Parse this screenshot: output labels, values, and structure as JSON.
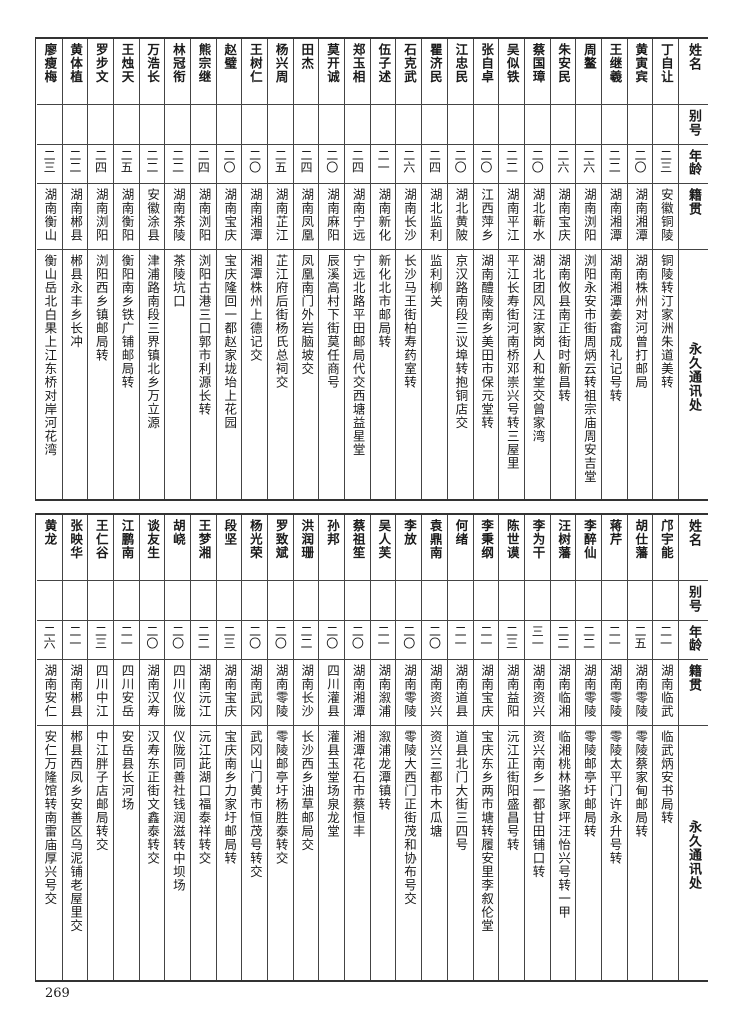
{
  "headers": {
    "name": "姓名",
    "alias": "别号",
    "age": "年龄",
    "native": "籍贯",
    "address": "永久通讯处"
  },
  "top_rows": [
    {
      "name": "丁自让",
      "alias": "",
      "age": "二三",
      "native": "安徽铜陵",
      "address": "铜陵转汀家洲朱道美转"
    },
    {
      "name": "黄寅宾",
      "alias": "",
      "age": "二〇",
      "native": "湖南湘潭",
      "address": "湖南株州对河曾打邮局"
    },
    {
      "name": "王继羲",
      "alias": "",
      "age": "二二",
      "native": "湖南湘潭",
      "address": "湖南湘潭姜畬成礼记号转"
    },
    {
      "name": "周鳌",
      "alias": "",
      "age": "二六",
      "native": "湖南浏阳",
      "address": "浏阳永安市街周炳云转祖宗庙周安吉堂"
    },
    {
      "name": "朱安民",
      "alias": "",
      "age": "二六",
      "native": "湖南宝庆",
      "address": "湖南攸县南正街时新昌转"
    },
    {
      "name": "蔡国璋",
      "alias": "",
      "age": "二〇",
      "native": "湖北蕲水",
      "address": "湖北团风汪家岗人和堂交曾家湾"
    },
    {
      "name": "吴似铁",
      "alias": "",
      "age": "二二",
      "native": "湖南平江",
      "address": "平江长寿街河南桥邓崇兴号转三屋里"
    },
    {
      "name": "张自卓",
      "alias": "",
      "age": "二〇",
      "native": "江西萍乡",
      "address": "湖南醴陵南乡美田市保元堂转"
    },
    {
      "name": "江忠民",
      "alias": "",
      "age": "二〇",
      "native": "湖北黄陂",
      "address": "京汉路南段三议埠转抱铜店交"
    },
    {
      "name": "瞿济民",
      "alias": "",
      "age": "二四",
      "native": "湖北监利",
      "address": "监利柳关"
    },
    {
      "name": "石克武",
      "alias": "",
      "age": "二六",
      "native": "湖南长沙",
      "address": "长沙马王街柏寿药室转"
    },
    {
      "name": "伍子述",
      "alias": "",
      "age": "二一",
      "native": "湖南新化",
      "address": "新化北市邮局转"
    },
    {
      "name": "郑玉相",
      "alias": "",
      "age": "二四",
      "native": "湖南宁远",
      "address": "宁远北路平田邮局代交西塘益星堂"
    },
    {
      "name": "莫开诚",
      "alias": "",
      "age": "二〇",
      "native": "湖南麻阳",
      "address": "辰溪高村下街莫任商号"
    },
    {
      "name": "田杰",
      "alias": "",
      "age": "二四",
      "native": "湖南凤凰",
      "address": "凤凰南门外岩脑坡交"
    },
    {
      "name": "杨兴周",
      "alias": "",
      "age": "二五",
      "native": "湖南芷江",
      "address": "芷江府后街杨氏总祠交"
    },
    {
      "name": "王树仁",
      "alias": "",
      "age": "二〇",
      "native": "湖南湘潭",
      "address": "湘潭株州上德记交"
    },
    {
      "name": "赵璧",
      "alias": "",
      "age": "二〇",
      "native": "湖南宝庆",
      "address": "宝庆隆回一都赵家垅坮上花园"
    },
    {
      "name": "熊宗继",
      "alias": "",
      "age": "二四",
      "native": "湖南浏阳",
      "address": "浏阳古港三口郭市利源长转"
    },
    {
      "name": "林冠衔",
      "alias": "",
      "age": "二二",
      "native": "湖南茶陵",
      "address": "茶陵坑口"
    },
    {
      "name": "万浩长",
      "alias": "",
      "age": "二二",
      "native": "安徽涂县",
      "address": "津浦路南段三界镇北乡万立源"
    },
    {
      "name": "王烛天",
      "alias": "",
      "age": "二五",
      "native": "湖南衡阳",
      "address": "衡阳南乡铁广铺邮局转"
    },
    {
      "name": "罗步文",
      "alias": "",
      "age": "二四",
      "native": "湖南浏阳",
      "address": "浏阳西乡镇邮局转"
    },
    {
      "name": "黄体植",
      "alias": "",
      "age": "二二",
      "native": "湖南郴县",
      "address": "郴县永丰乡长冲"
    },
    {
      "name": "廖瘦梅",
      "alias": "",
      "age": "二三",
      "native": "湖南衡山",
      "address": "衡山岳北白果上江东桥对岸河花湾"
    }
  ],
  "bottom_rows": [
    {
      "name": "邝宇能",
      "alias": "",
      "age": "二一",
      "native": "湖南临武",
      "address": "临武炳安书局转"
    },
    {
      "name": "胡仕藩",
      "alias": "",
      "age": "二五",
      "native": "湖南零陵",
      "address": "零陵蔡家甸邮局转"
    },
    {
      "name": "蒋芹",
      "alias": "",
      "age": "二一",
      "native": "湖南零陵",
      "address": "零陵太平门许永升号转"
    },
    {
      "name": "李醉仙",
      "alias": "",
      "age": "二二",
      "native": "湖南零陵",
      "address": "零陵邮亭圩邮局转"
    },
    {
      "name": "汪树藩",
      "alias": "",
      "age": "二二",
      "native": "湖南临湘",
      "address": "临湘桃林骆家坪汪怡兴号转一甲"
    },
    {
      "name": "李为干",
      "alias": "",
      "age": "三一",
      "native": "湖南资兴",
      "address": "资兴南乡一都甘田铺口转"
    },
    {
      "name": "陈世谟",
      "alias": "",
      "age": "二三",
      "native": "湖南益阳",
      "address": "沅江正街阳盛昌号转"
    },
    {
      "name": "李秉纲",
      "alias": "",
      "age": "二一",
      "native": "湖南宝庆",
      "address": "宝庆东乡两市塘转履安里李叙伦堂"
    },
    {
      "name": "何绪",
      "alias": "",
      "age": "二一",
      "native": "湖南道县",
      "address": "道县北门大街三四号"
    },
    {
      "name": "袁鼎南",
      "alias": "",
      "age": "二〇",
      "native": "湖南资兴",
      "address": "资兴三都市木瓜塘"
    },
    {
      "name": "李放",
      "alias": "",
      "age": "二〇",
      "native": "湖南零陵",
      "address": "零陵大西门正街茂和协布号交"
    },
    {
      "name": "吴人芙",
      "alias": "",
      "age": "二一",
      "native": "湖南溆浦",
      "address": "溆浦龙潭镇转"
    },
    {
      "name": "蔡祖笙",
      "alias": "",
      "age": "二〇",
      "native": "湖南湘潭",
      "address": "湘潭花石市蔡恒丰"
    },
    {
      "name": "孙邦",
      "alias": "",
      "age": "二〇",
      "native": "四川灌县",
      "address": "灌县玉堂场泉龙堂"
    },
    {
      "name": "洪润珊",
      "alias": "",
      "age": "二二",
      "native": "湖南长沙",
      "address": "长沙西乡油草邮局交"
    },
    {
      "name": "罗致斌",
      "alias": "",
      "age": "二〇",
      "native": "湖南零陵",
      "address": "零陵邮亭圩杨胜泰转交"
    },
    {
      "name": "杨光荣",
      "alias": "",
      "age": "二〇",
      "native": "湖南武冈",
      "address": "武冈山门黄市恒茂号转交"
    },
    {
      "name": "段坚",
      "alias": "",
      "age": "二三",
      "native": "湖南宝庆",
      "address": "宝庆南乡力家圩邮局转"
    },
    {
      "name": "王梦湘",
      "alias": "",
      "age": "二二",
      "native": "湖南沅江",
      "address": "沅江茈湖口福泰祥转交"
    },
    {
      "name": "胡峣",
      "alias": "",
      "age": "二〇",
      "native": "四川仪陇",
      "address": "仪陇同善社钱润滋转中坝场"
    },
    {
      "name": "谈友生",
      "alias": "",
      "age": "二〇",
      "native": "湖南汉寿",
      "address": "汉寿东正街文鑫泰转交"
    },
    {
      "name": "江鹏南",
      "alias": "",
      "age": "二一",
      "native": "四川安岳",
      "address": "安岳县长河场"
    },
    {
      "name": "王仁谷",
      "alias": "",
      "age": "二三",
      "native": "四川中江",
      "address": "中江胖子店邮局转交"
    },
    {
      "name": "张映华",
      "alias": "",
      "age": "二一",
      "native": "湖南郴县",
      "address": "郴县西凤乡安善区乌泥铺老屋里交"
    },
    {
      "name": "黄龙",
      "alias": "",
      "age": "二六",
      "native": "湖南安仁",
      "address": "安仁万隆馆转南雷庙厚兴号交"
    }
  ],
  "page_number": "269"
}
